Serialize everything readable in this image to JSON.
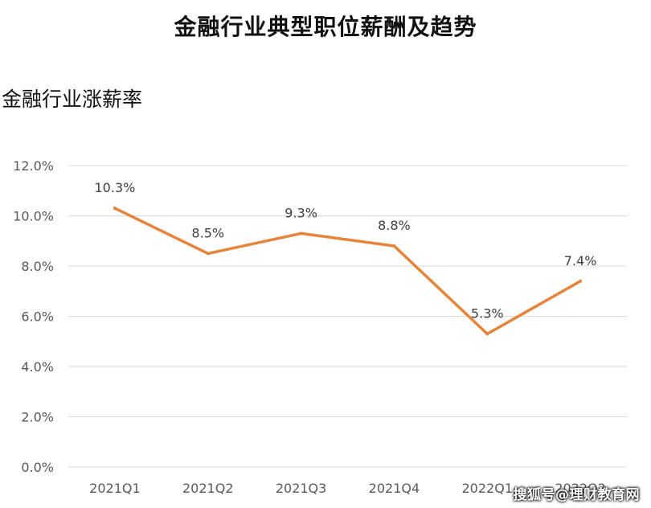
{
  "title": "金融行业典型职位薪酬及趋势",
  "subtitle": "金融行业涨薪率",
  "watermark": "搜狐号@理财教育网",
  "colors": {
    "line": "#E8833A",
    "grid": "#D9D9D9",
    "tick_text": "#595959",
    "label_text": "#404040"
  },
  "chart_data": {
    "type": "line",
    "title": "金融行业涨薪率",
    "categories": [
      "2021Q1",
      "2021Q2",
      "2021Q3",
      "2021Q4",
      "2022Q1",
      "2022Q2"
    ],
    "values": [
      10.3,
      8.5,
      9.3,
      8.8,
      5.3,
      7.4
    ],
    "data_labels": [
      "10.3%",
      "8.5%",
      "9.3%",
      "8.8%",
      "5.3%",
      "7.4%"
    ],
    "y_ticks": [
      "0.0%",
      "2.0%",
      "4.0%",
      "6.0%",
      "8.0%",
      "10.0%",
      "12.0%"
    ],
    "ylim": [
      0,
      12
    ],
    "grid": true,
    "legend": "none"
  }
}
